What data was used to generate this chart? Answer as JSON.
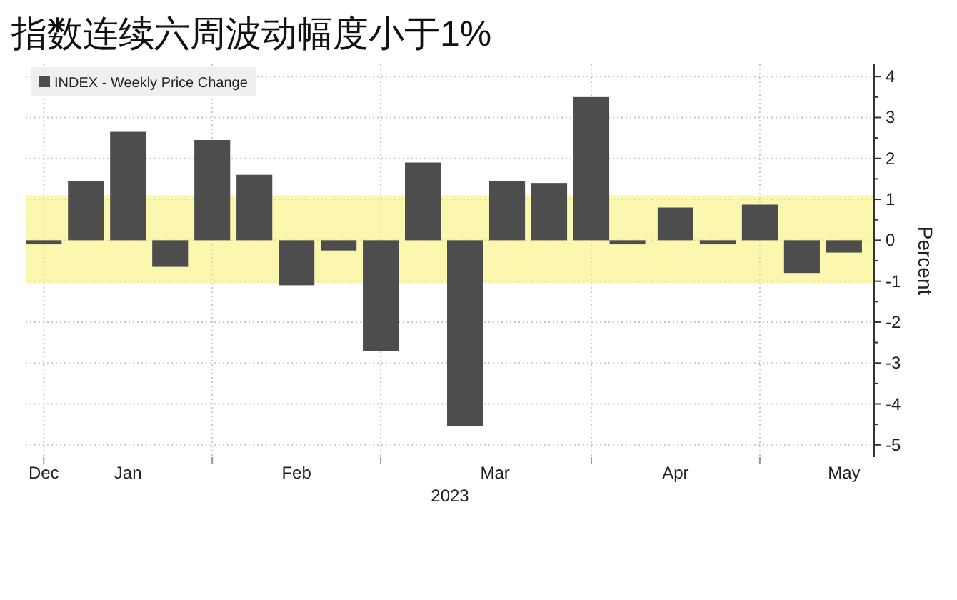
{
  "chart_data": {
    "type": "bar",
    "title": "指数连续六周波动幅度小于1%",
    "xlabel": "2023",
    "ylabel": "Percent",
    "x": [
      "2022-12-30",
      "2023-01-06",
      "2023-01-13",
      "2023-01-20",
      "2023-01-27",
      "2023-02-03",
      "2023-02-10",
      "2023-02-17",
      "2023-02-24",
      "2023-03-03",
      "2023-03-10",
      "2023-03-17",
      "2023-03-24",
      "2023-03-31",
      "2023-04-06",
      "2023-04-14",
      "2023-04-21",
      "2023-04-28",
      "2023-05-05",
      "2023-05-12"
    ],
    "series": [
      {
        "name": "INDEX - Weekly Price Change",
        "color": "#4d4d4d",
        "values": [
          -0.1,
          1.45,
          2.65,
          -0.65,
          2.45,
          1.6,
          -1.1,
          -0.25,
          -2.7,
          1.9,
          -4.55,
          1.45,
          1.4,
          3.5,
          -0.1,
          0.8,
          -0.1,
          0.87,
          -0.8,
          -0.3
        ]
      }
    ],
    "xlim": [
      "2022-12-27",
      "2023-05-17"
    ],
    "xticks": [
      {
        "value": "2022-12-30",
        "label": null
      },
      {
        "value": "2023-01-27",
        "label": null
      },
      {
        "value": "2023-02-24",
        "label": null
      },
      {
        "value": "2023-03-31",
        "label": null
      },
      {
        "value": "2023-04-28",
        "label": null
      },
      {
        "value": "2022-12-30",
        "label": "Dec"
      },
      {
        "value": "2023-01-13",
        "label": "Jan"
      },
      {
        "value": "2023-02-10",
        "label": "Feb"
      },
      {
        "value": "2023-03-15",
        "label": "Mar"
      },
      {
        "value": "2023-04-14",
        "label": "Apr"
      },
      {
        "value": "2023-05-12",
        "label": "May"
      }
    ],
    "ylim": [
      -5.3,
      4.3
    ],
    "yticks": [
      -5,
      -4,
      -3,
      -2,
      -1,
      0,
      1,
      2,
      3,
      4
    ],
    "bands": [
      {
        "axis": "y",
        "from": -1.05,
        "to": 1.1,
        "color": "#f7f06e"
      }
    ],
    "grid": true,
    "legend": "top left"
  }
}
